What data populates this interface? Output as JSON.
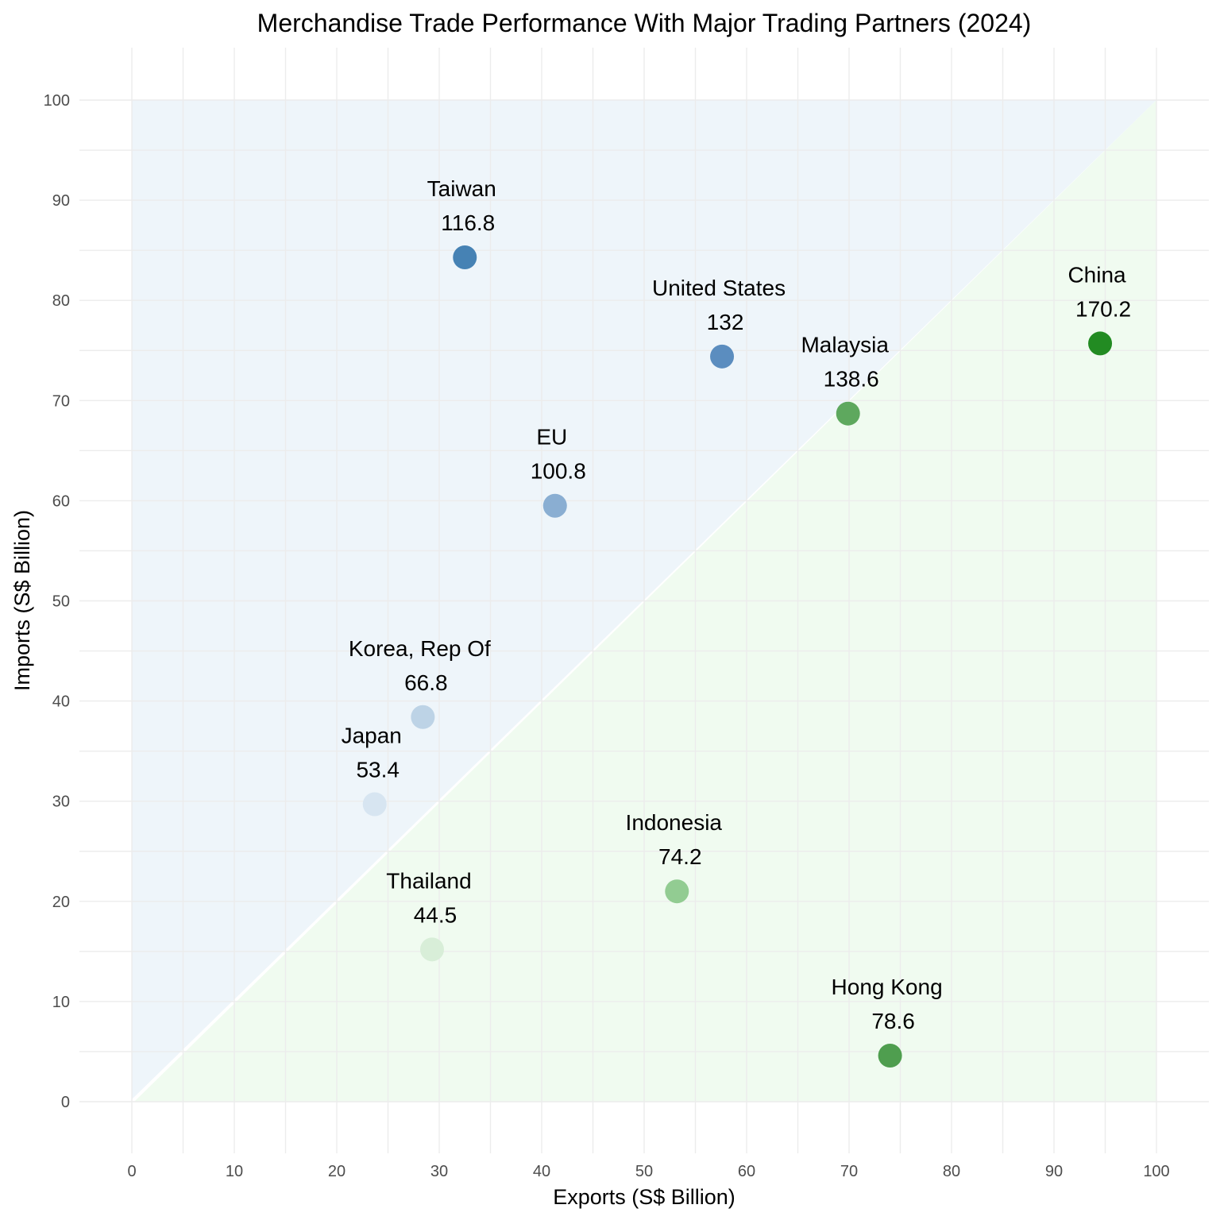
{
  "chart_data": {
    "type": "scatter",
    "title": "Merchandise Trade Performance With Major Trading Partners (2024)",
    "xlabel": "Exports (S$ Billion)",
    "ylabel": "Imports (S$ Billion)",
    "xlim": [
      0,
      100
    ],
    "ylim": [
      0,
      100
    ],
    "xticks": [
      0,
      10,
      20,
      30,
      40,
      50,
      60,
      70,
      80,
      90,
      100
    ],
    "yticks": [
      0,
      10,
      20,
      30,
      40,
      50,
      60,
      70,
      80,
      90,
      100
    ],
    "grid": true,
    "legend": "none",
    "regions": {
      "above_diagonal_color": "#eef5fa",
      "below_diagonal_color": "#f0fbf0"
    },
    "points": [
      {
        "label": "Taiwan",
        "total": "116.8",
        "x": 32.5,
        "y": 84.3,
        "color": "#4682b4"
      },
      {
        "label": "United States",
        "total": "132",
        "x": 57.6,
        "y": 74.4,
        "color": "#5b8dbf"
      },
      {
        "label": "China",
        "total": "170.2",
        "x": 94.5,
        "y": 75.7,
        "color": "#228b22"
      },
      {
        "label": "Malaysia",
        "total": "138.6",
        "x": 69.9,
        "y": 68.7,
        "color": "#5ea85e"
      },
      {
        "label": "EU",
        "total": "100.8",
        "x": 41.3,
        "y": 59.5,
        "color": "#8aaed2"
      },
      {
        "label": "Korea, Rep Of",
        "total": "66.8",
        "x": 28.4,
        "y": 38.4,
        "color": "#bdd3e6"
      },
      {
        "label": "Japan",
        "total": "53.4",
        "x": 23.7,
        "y": 29.7,
        "color": "#d7e5f1"
      },
      {
        "label": "Indonesia",
        "total": "74.2",
        "x": 53.2,
        "y": 21.0,
        "color": "#92cc92"
      },
      {
        "label": "Thailand",
        "total": "44.5",
        "x": 29.3,
        "y": 15.2,
        "color": "#d8eed8"
      },
      {
        "label": "Hong Kong",
        "total": "78.6",
        "x": 74.0,
        "y": 4.6,
        "color": "#4f9e4f"
      }
    ]
  }
}
